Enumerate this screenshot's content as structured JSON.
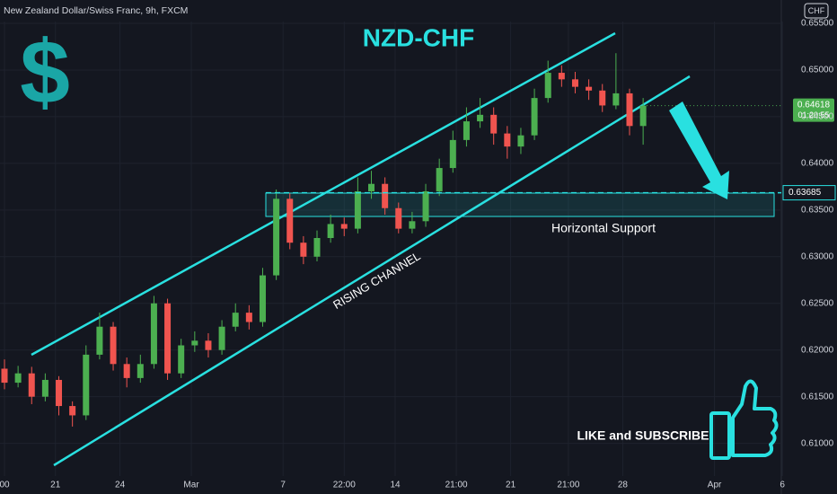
{
  "chart_data": {
    "type": "candlestick",
    "header": "New Zealand Dollar/Swiss Franc, 9h, FXCM",
    "currency": "CHF",
    "symbol_icon": "$",
    "title": "NZD-CHF",
    "annotations": {
      "support": "Horizontal Support",
      "channel": "RISING CHANNEL",
      "cta": "LIKE and SUBSCRIBE"
    },
    "countdown": "01:20:55",
    "support_level": 0.63685,
    "up_color": "#4caf50",
    "down_color": "#f0544f",
    "accent_color": "#29e0e0",
    "grid": true,
    "xlim": [
      0,
      57.5
    ],
    "xticks": [
      {
        "value": 0,
        "label": "00"
      },
      {
        "value": 3.75,
        "label": "21"
      },
      {
        "value": 8.5,
        "label": "24"
      },
      {
        "value": 13.75,
        "label": "Mar"
      },
      {
        "value": 20.5,
        "label": "7"
      },
      {
        "value": 25,
        "label": "22:00"
      },
      {
        "value": 28.75,
        "label": "14"
      },
      {
        "value": 33.25,
        "label": "21:00"
      },
      {
        "value": 37.25,
        "label": "21"
      },
      {
        "value": 41.5,
        "label": "21:00"
      },
      {
        "value": 45.5,
        "label": "28"
      },
      {
        "value": 52.25,
        "label": "Apr"
      },
      {
        "value": 57.25,
        "label": "6"
      }
    ],
    "ylim": [
      0.6065,
      0.6575
    ],
    "yticks": [
      {
        "value": 0.655,
        "label": "0.65500"
      },
      {
        "value": 0.65,
        "label": "0.65000"
      },
      {
        "value": 0.645,
        "label": "0.64500"
      },
      {
        "value": 0.64,
        "label": "0.64000"
      },
      {
        "value": 0.635,
        "label": "0.63500"
      },
      {
        "value": 0.63,
        "label": "0.63000"
      },
      {
        "value": 0.625,
        "label": "0.62500"
      },
      {
        "value": 0.62,
        "label": "0.62000"
      },
      {
        "value": 0.615,
        "label": "0.61500"
      },
      {
        "value": 0.61,
        "label": "0.61000"
      }
    ],
    "open": [
      0.618,
      0.6165,
      0.6175,
      0.615,
      0.6168,
      0.614,
      0.613,
      0.6195,
      0.6225,
      0.6185,
      0.617,
      0.6185,
      0.625,
      0.6175,
      0.6205,
      0.621,
      0.62,
      0.6225,
      0.624,
      0.623,
      0.628,
      0.6362,
      0.6315,
      0.63,
      0.632,
      0.6335,
      0.633,
      0.637,
      0.6378,
      0.6352,
      0.633,
      0.6338,
      0.637,
      0.6395,
      0.6425,
      0.6445,
      0.6452,
      0.6432,
      0.6418,
      0.643,
      0.647,
      0.6497,
      0.649,
      0.6482,
      0.6478,
      0.6462,
      0.6475,
      0.644
    ],
    "high": [
      0.619,
      0.6183,
      0.6182,
      0.6175,
      0.6172,
      0.6145,
      0.6205,
      0.624,
      0.623,
      0.6192,
      0.6195,
      0.6258,
      0.6255,
      0.6212,
      0.622,
      0.6218,
      0.6232,
      0.625,
      0.6248,
      0.6288,
      0.6372,
      0.6368,
      0.6322,
      0.6328,
      0.6345,
      0.6342,
      0.6385,
      0.6392,
      0.6385,
      0.6358,
      0.6348,
      0.6378,
      0.6405,
      0.6435,
      0.646,
      0.647,
      0.646,
      0.644,
      0.6438,
      0.648,
      0.651,
      0.6505,
      0.6498,
      0.649,
      0.6485,
      0.6518,
      0.648,
      0.647
    ],
    "low": [
      0.6158,
      0.616,
      0.6142,
      0.6145,
      0.613,
      0.6118,
      0.6125,
      0.619,
      0.6178,
      0.616,
      0.6165,
      0.618,
      0.6168,
      0.617,
      0.6198,
      0.6192,
      0.6195,
      0.622,
      0.6222,
      0.6225,
      0.6275,
      0.6308,
      0.6292,
      0.6295,
      0.6315,
      0.6322,
      0.6325,
      0.6362,
      0.6345,
      0.6325,
      0.6325,
      0.6332,
      0.6365,
      0.639,
      0.6418,
      0.6438,
      0.642,
      0.6405,
      0.641,
      0.6425,
      0.6465,
      0.6482,
      0.6475,
      0.6468,
      0.6455,
      0.6458,
      0.643,
      0.642
    ],
    "close": [
      0.6165,
      0.6175,
      0.615,
      0.6168,
      0.614,
      0.613,
      0.6195,
      0.6225,
      0.6185,
      0.617,
      0.6185,
      0.625,
      0.6175,
      0.6205,
      0.621,
      0.62,
      0.6225,
      0.624,
      0.623,
      0.628,
      0.6362,
      0.6315,
      0.63,
      0.632,
      0.6335,
      0.633,
      0.637,
      0.6378,
      0.6352,
      0.633,
      0.6338,
      0.637,
      0.6395,
      0.6425,
      0.6445,
      0.6452,
      0.6432,
      0.6418,
      0.643,
      0.647,
      0.6497,
      0.649,
      0.6482,
      0.6478,
      0.6462,
      0.6475,
      0.644,
      0.64618
    ]
  }
}
